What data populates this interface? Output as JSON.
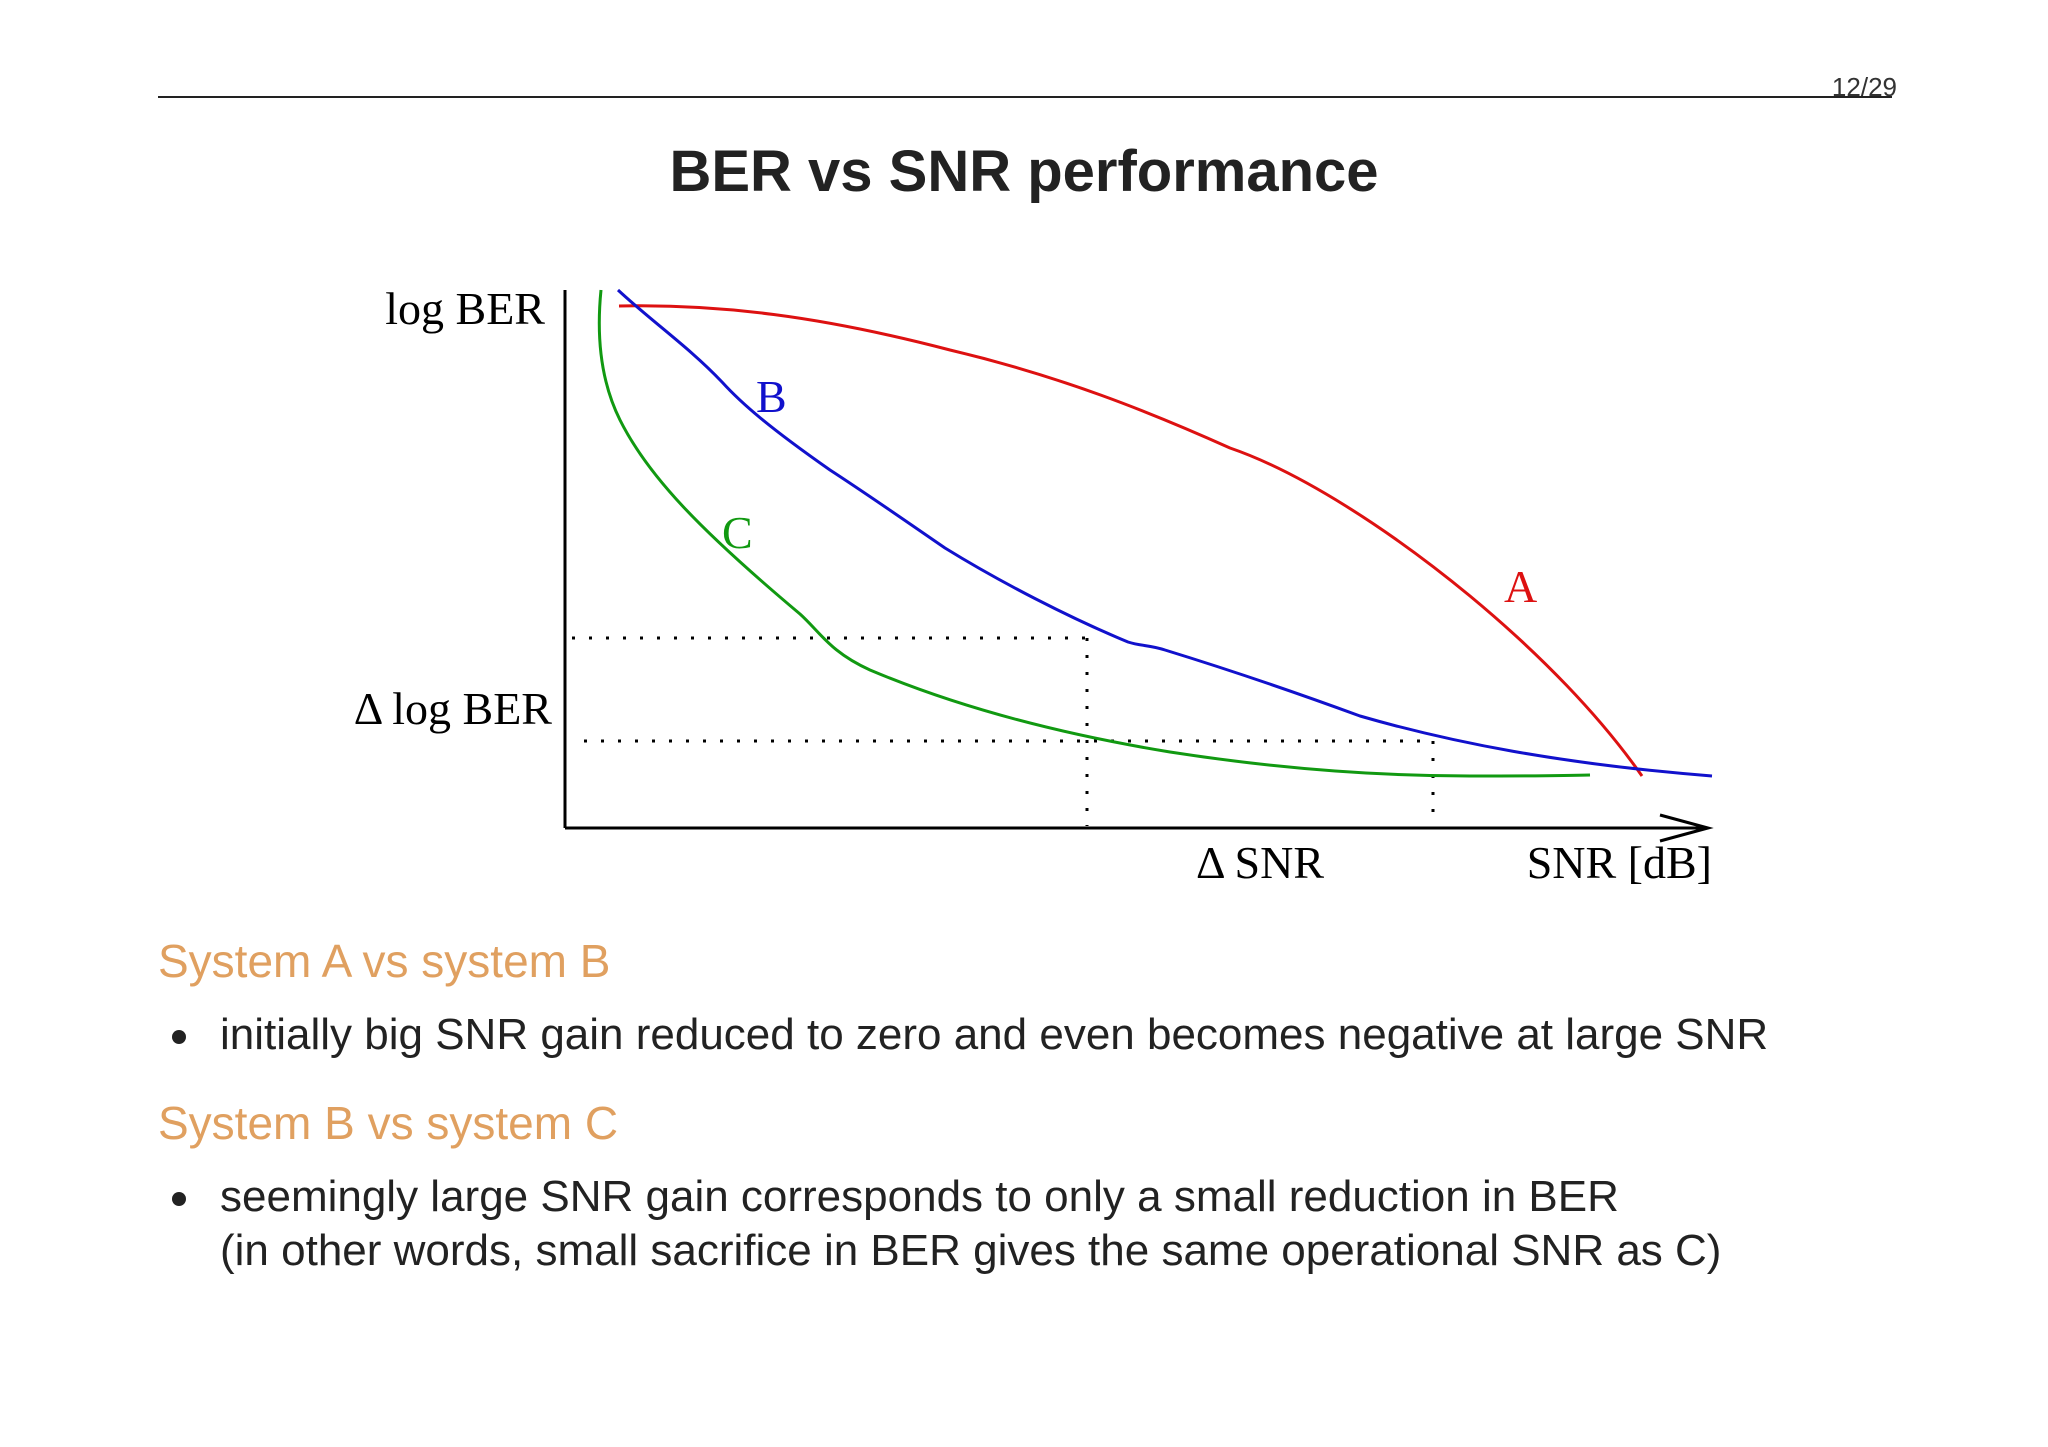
{
  "header": {
    "page_number": "12/29"
  },
  "slide": {
    "title": "BER vs SNR performance"
  },
  "chart_data": {
    "type": "line",
    "xlabel": "SNR [dB]",
    "ylabel": "log BER",
    "annotations": {
      "delta_y_label": "Δ log BER",
      "delta_x_label": "Δ SNR"
    },
    "series": [
      {
        "name": "A",
        "color": "#dd1111"
      },
      {
        "name": "B",
        "color": "#1111cc"
      },
      {
        "name": "C",
        "color": "#119911"
      }
    ],
    "grid": false,
    "legend": "inline curve labels"
  },
  "sections": [
    {
      "heading": "System A vs system B",
      "bullets": [
        [
          "initially big SNR gain reduced to zero and even becomes negative at large SNR"
        ]
      ]
    },
    {
      "heading": "System B vs system C",
      "bullets": [
        [
          "seemingly large SNR gain corresponds to only a small reduction in BER",
          "(in other words, small sacrifice in BER gives the same operational SNR as C)"
        ]
      ]
    }
  ]
}
